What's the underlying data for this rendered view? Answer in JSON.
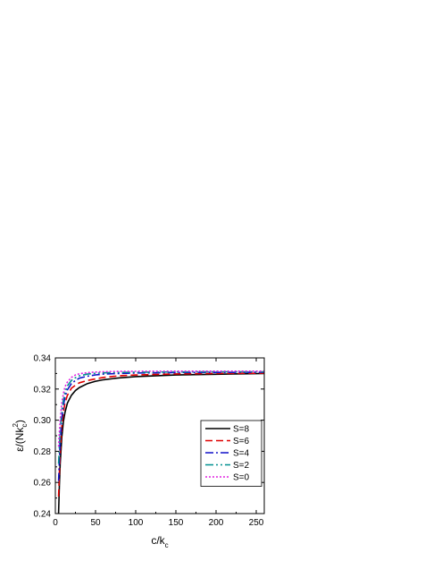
{
  "chart_data": {
    "type": "line",
    "title": "",
    "xlabel": "c/k",
    "xlabel_sub": "c",
    "ylabel_prefix": "ε/(Nk",
    "ylabel_sup": "2",
    "ylabel_sub": "c",
    "ylabel_suffix": ")",
    "xlim": [
      0,
      260
    ],
    "ylim": [
      0.24,
      0.34
    ],
    "xticks": [
      0,
      50,
      100,
      150,
      200,
      250
    ],
    "yticks": [
      0.24,
      0.26,
      0.28,
      0.3,
      0.32,
      0.34
    ],
    "ytick_labels": [
      "0.24",
      "0.26",
      "0.28",
      "0.30",
      "0.32",
      "0.34"
    ],
    "grid": false,
    "legend_position": "center-right",
    "series": [
      {
        "name": "S=8",
        "color": "#000000",
        "dash": "solid",
        "x": [
          4,
          5,
          6,
          8,
          10,
          12,
          15,
          20,
          25,
          30,
          40,
          50,
          60,
          80,
          100,
          150,
          200,
          260
        ],
        "y": [
          0.24,
          0.258,
          0.272,
          0.289,
          0.299,
          0.305,
          0.311,
          0.316,
          0.319,
          0.321,
          0.3235,
          0.325,
          0.326,
          0.3272,
          0.328,
          0.329,
          0.3295,
          0.33
        ]
      },
      {
        "name": "S=6",
        "color": "#e00000",
        "dash": "8,4",
        "x": [
          4,
          5,
          6,
          8,
          10,
          12,
          15,
          20,
          25,
          30,
          40,
          50,
          60,
          80,
          100,
          150,
          200,
          260
        ],
        "y": [
          0.251,
          0.266,
          0.279,
          0.296,
          0.305,
          0.311,
          0.316,
          0.3205,
          0.3225,
          0.324,
          0.3255,
          0.3265,
          0.3275,
          0.3285,
          0.329,
          0.3297,
          0.33,
          0.3302
        ]
      },
      {
        "name": "S=4",
        "color": "#1010c8",
        "dash": "9,3,2,3",
        "x": [
          4,
          5,
          6,
          8,
          10,
          12,
          15,
          20,
          25,
          30,
          40,
          50,
          60,
          80,
          100,
          150,
          200,
          260
        ],
        "y": [
          0.261,
          0.274,
          0.286,
          0.301,
          0.309,
          0.315,
          0.3195,
          0.3235,
          0.3255,
          0.327,
          0.3283,
          0.3291,
          0.3296,
          0.33,
          0.3303,
          0.3306,
          0.3307,
          0.3308
        ]
      },
      {
        "name": "S=2",
        "color": "#009090",
        "dash": "9,3,2,3,2,3",
        "x": [
          4,
          5,
          6,
          8,
          10,
          12,
          15,
          20,
          25,
          30,
          40,
          50,
          60,
          80,
          100,
          150,
          200,
          260
        ],
        "y": [
          0.272,
          0.283,
          0.293,
          0.306,
          0.313,
          0.318,
          0.322,
          0.3255,
          0.3273,
          0.3285,
          0.3296,
          0.3301,
          0.3304,
          0.3307,
          0.3308,
          0.331,
          0.3311,
          0.3311
        ]
      },
      {
        "name": "S=0",
        "color": "#e020e0",
        "dash": "2,2",
        "x": [
          4,
          5,
          6,
          8,
          10,
          12,
          15,
          20,
          25,
          30,
          40,
          50,
          60,
          80,
          100,
          150,
          200,
          260
        ],
        "y": [
          0.283,
          0.292,
          0.3,
          0.311,
          0.317,
          0.3215,
          0.3245,
          0.3275,
          0.329,
          0.3298,
          0.3305,
          0.3309,
          0.3311,
          0.3313,
          0.3314,
          0.3315,
          0.3315,
          0.3315
        ]
      }
    ]
  }
}
